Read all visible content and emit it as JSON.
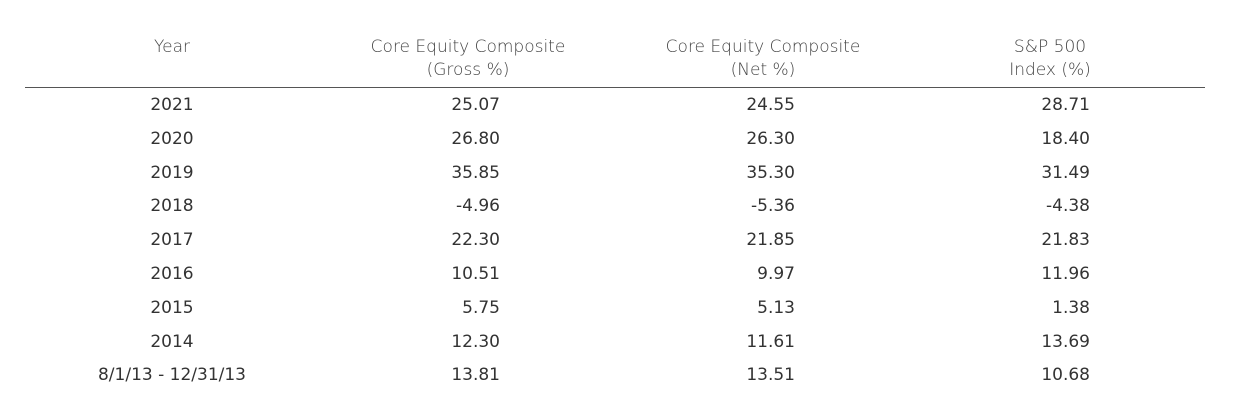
{
  "chart_data": {
    "type": "table",
    "columns": [
      {
        "line1": "",
        "line2": "Year"
      },
      {
        "line1": "Core Equity Composite",
        "line2": "(Gross %)"
      },
      {
        "line1": "Core Equity Composite",
        "line2": "(Net %)"
      },
      {
        "line1": "S&P 500",
        "line2": "Index (%)"
      }
    ],
    "rows": [
      {
        "year": "2021",
        "gross": "25.07",
        "net": "24.55",
        "sp500": "28.71"
      },
      {
        "year": "2020",
        "gross": "26.80",
        "net": "26.30",
        "sp500": "18.40"
      },
      {
        "year": "2019",
        "gross": "35.85",
        "net": "35.30",
        "sp500": "31.49"
      },
      {
        "year": "2018",
        "gross": "-4.96",
        "net": "-5.36",
        "sp500": "-4.38"
      },
      {
        "year": "2017",
        "gross": "22.30",
        "net": "21.85",
        "sp500": "21.83"
      },
      {
        "year": "2016",
        "gross": "10.51",
        "net": "9.97",
        "sp500": "11.96"
      },
      {
        "year": "2015",
        "gross": "5.75",
        "net": "5.13",
        "sp500": "1.38"
      },
      {
        "year": "2014",
        "gross": "12.30",
        "net": "11.61",
        "sp500": "13.69"
      },
      {
        "year": "8/1/13 - 12/31/13",
        "gross": "13.81",
        "net": "13.51",
        "sp500": "10.68"
      }
    ]
  }
}
